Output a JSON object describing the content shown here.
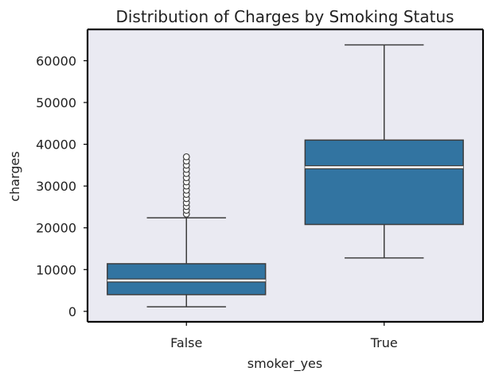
{
  "chart_data": {
    "type": "box",
    "title": "Distribution of Charges by Smoking Status",
    "xlabel": "smoker_yes",
    "ylabel": "charges",
    "categories": [
      "False",
      "True"
    ],
    "ylim": [
      -2500,
      67500
    ],
    "yticks": [
      0,
      10000,
      20000,
      30000,
      40000,
      50000,
      60000
    ],
    "ytick_labels": [
      "0",
      "10000",
      "20000",
      "30000",
      "40000",
      "50000",
      "60000"
    ],
    "grid": false,
    "boxes": [
      {
        "category": "False",
        "whisker_low": 1100,
        "q1": 4000,
        "median": 7400,
        "q3": 11400,
        "whisker_high": 22400,
        "outliers": [
          23300,
          24200,
          25100,
          26000,
          27000,
          28000,
          29000,
          30000,
          31000,
          32000,
          33000,
          34000,
          35000,
          36000,
          37000
        ]
      },
      {
        "category": "True",
        "whisker_low": 12800,
        "q1": 20800,
        "median": 34500,
        "q3": 41000,
        "whisker_high": 63800,
        "outliers": []
      }
    ],
    "colors": {
      "box_fill": "#3274a1",
      "plot_background": "#eaeaf2",
      "median_line": "#ffffff",
      "line": "#3d3d3d"
    }
  }
}
